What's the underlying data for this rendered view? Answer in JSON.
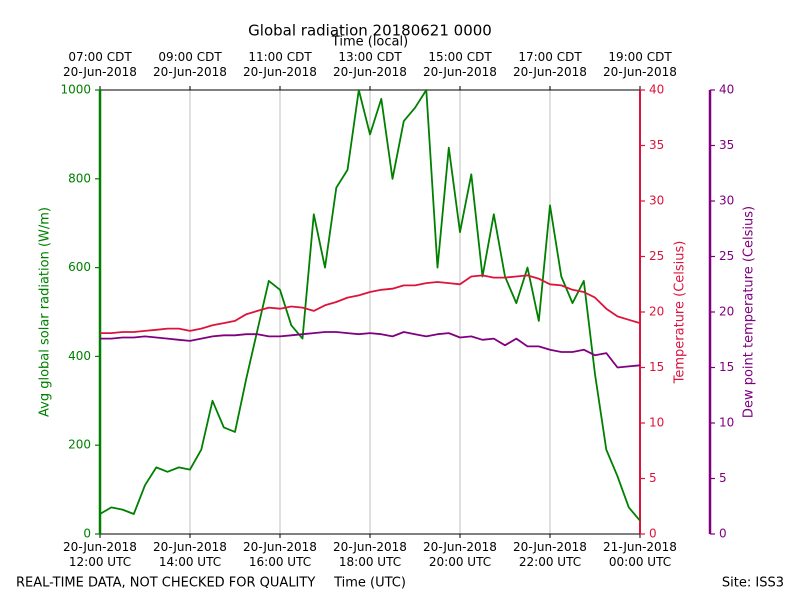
{
  "chart_data": {
    "type": "line",
    "title": "Global radiation 20180621 0000",
    "xlabel": "Time (UTC)",
    "x2label": "Time (local)",
    "ylabel": "Avg global solar radiation (W/m)",
    "y2label": "Temperature (Celsius)",
    "y3label": "Dew point temperature (Celsius)",
    "note": "REAL-TIME DATA, NOT CHECKED FOR QUALITY",
    "site": "Site: ISS3",
    "grid": "x",
    "xlim": [
      12,
      24
    ],
    "xticks": [
      {
        "value": 12,
        "label": "20-Jun-2018\n12:00 UTC"
      },
      {
        "value": 14,
        "label": "20-Jun-2018\n14:00 UTC"
      },
      {
        "value": 16,
        "label": "20-Jun-2018\n16:00 UTC"
      },
      {
        "value": 18,
        "label": "20-Jun-2018\n18:00 UTC"
      },
      {
        "value": 20,
        "label": "20-Jun-2018\n20:00 UTC"
      },
      {
        "value": 22,
        "label": "20-Jun-2018\n22:00 UTC"
      },
      {
        "value": 24,
        "label": "21-Jun-2018\n00:00 UTC"
      }
    ],
    "x2ticks": [
      {
        "value": 12,
        "label": "07:00 CDT\n20-Jun-2018"
      },
      {
        "value": 14,
        "label": "09:00 CDT\n20-Jun-2018"
      },
      {
        "value": 16,
        "label": "11:00 CDT\n20-Jun-2018"
      },
      {
        "value": 18,
        "label": "13:00 CDT\n20-Jun-2018"
      },
      {
        "value": 20,
        "label": "15:00 CDT\n20-Jun-2018"
      },
      {
        "value": 22,
        "label": "17:00 CDT\n20-Jun-2018"
      },
      {
        "value": 24,
        "label": "19:00 CDT\n20-Jun-2018"
      }
    ],
    "ylim": [
      0,
      1000
    ],
    "yticks": [
      0,
      200,
      400,
      600,
      800,
      1000
    ],
    "y2lim": [
      0,
      40
    ],
    "y2ticks": [
      0,
      5,
      10,
      15,
      20,
      25,
      30,
      35,
      40
    ],
    "y3lim": [
      0,
      40
    ],
    "y3ticks": [
      0,
      5,
      10,
      15,
      20,
      25,
      30,
      35,
      40
    ],
    "x": [
      12,
      12.25,
      12.5,
      12.75,
      13,
      13.25,
      13.5,
      13.75,
      14,
      14.25,
      14.5,
      14.75,
      15,
      15.25,
      15.5,
      15.75,
      16,
      16.25,
      16.5,
      16.75,
      17,
      17.25,
      17.5,
      17.75,
      18,
      18.25,
      18.5,
      18.75,
      19,
      19.25,
      19.5,
      19.75,
      20,
      20.25,
      20.5,
      20.75,
      21,
      21.25,
      21.5,
      21.75,
      22,
      22.25,
      22.5,
      22.75,
      23,
      23.25,
      23.5,
      23.75,
      24
    ],
    "series": [
      {
        "color": "#008000",
        "axis": "y",
        "values": [
          45,
          60,
          55,
          45,
          110,
          150,
          140,
          150,
          145,
          190,
          300,
          240,
          230,
          350,
          460,
          570,
          550,
          470,
          440,
          720,
          600,
          780,
          820,
          1000,
          900,
          980,
          800,
          930,
          960,
          1000,
          600,
          870,
          680,
          810,
          580,
          720,
          580,
          520,
          600,
          480,
          740,
          580,
          520,
          570,
          360,
          190,
          130,
          60,
          30
        ]
      },
      {
        "color": "#dc143c",
        "axis": "y2",
        "values": [
          18.1,
          18.1,
          18.2,
          18.2,
          18.3,
          18.4,
          18.5,
          18.5,
          18.3,
          18.5,
          18.8,
          19.0,
          19.2,
          19.8,
          20.1,
          20.4,
          20.3,
          20.5,
          20.4,
          20.1,
          20.6,
          20.9,
          21.3,
          21.5,
          21.8,
          22.0,
          22.1,
          22.4,
          22.4,
          22.6,
          22.7,
          22.6,
          22.5,
          23.2,
          23.3,
          23.1,
          23.1,
          23.2,
          23.3,
          23.0,
          22.5,
          22.4,
          22.0,
          21.8,
          21.3,
          20.3,
          19.6,
          19.3,
          19.0
        ]
      },
      {
        "color": "#800080",
        "axis": "y3",
        "values": [
          17.6,
          17.6,
          17.7,
          17.7,
          17.8,
          17.7,
          17.6,
          17.5,
          17.4,
          17.6,
          17.8,
          17.9,
          17.9,
          18.0,
          18.0,
          17.8,
          17.8,
          17.9,
          18.0,
          18.1,
          18.2,
          18.2,
          18.1,
          18.0,
          18.1,
          18.0,
          17.8,
          18.2,
          18.0,
          17.8,
          18.0,
          18.1,
          17.7,
          17.8,
          17.5,
          17.6,
          17.0,
          17.6,
          16.9,
          16.9,
          16.6,
          16.4,
          16.4,
          16.6,
          16.1,
          16.3,
          15.0,
          15.1,
          15.2
        ]
      }
    ]
  }
}
